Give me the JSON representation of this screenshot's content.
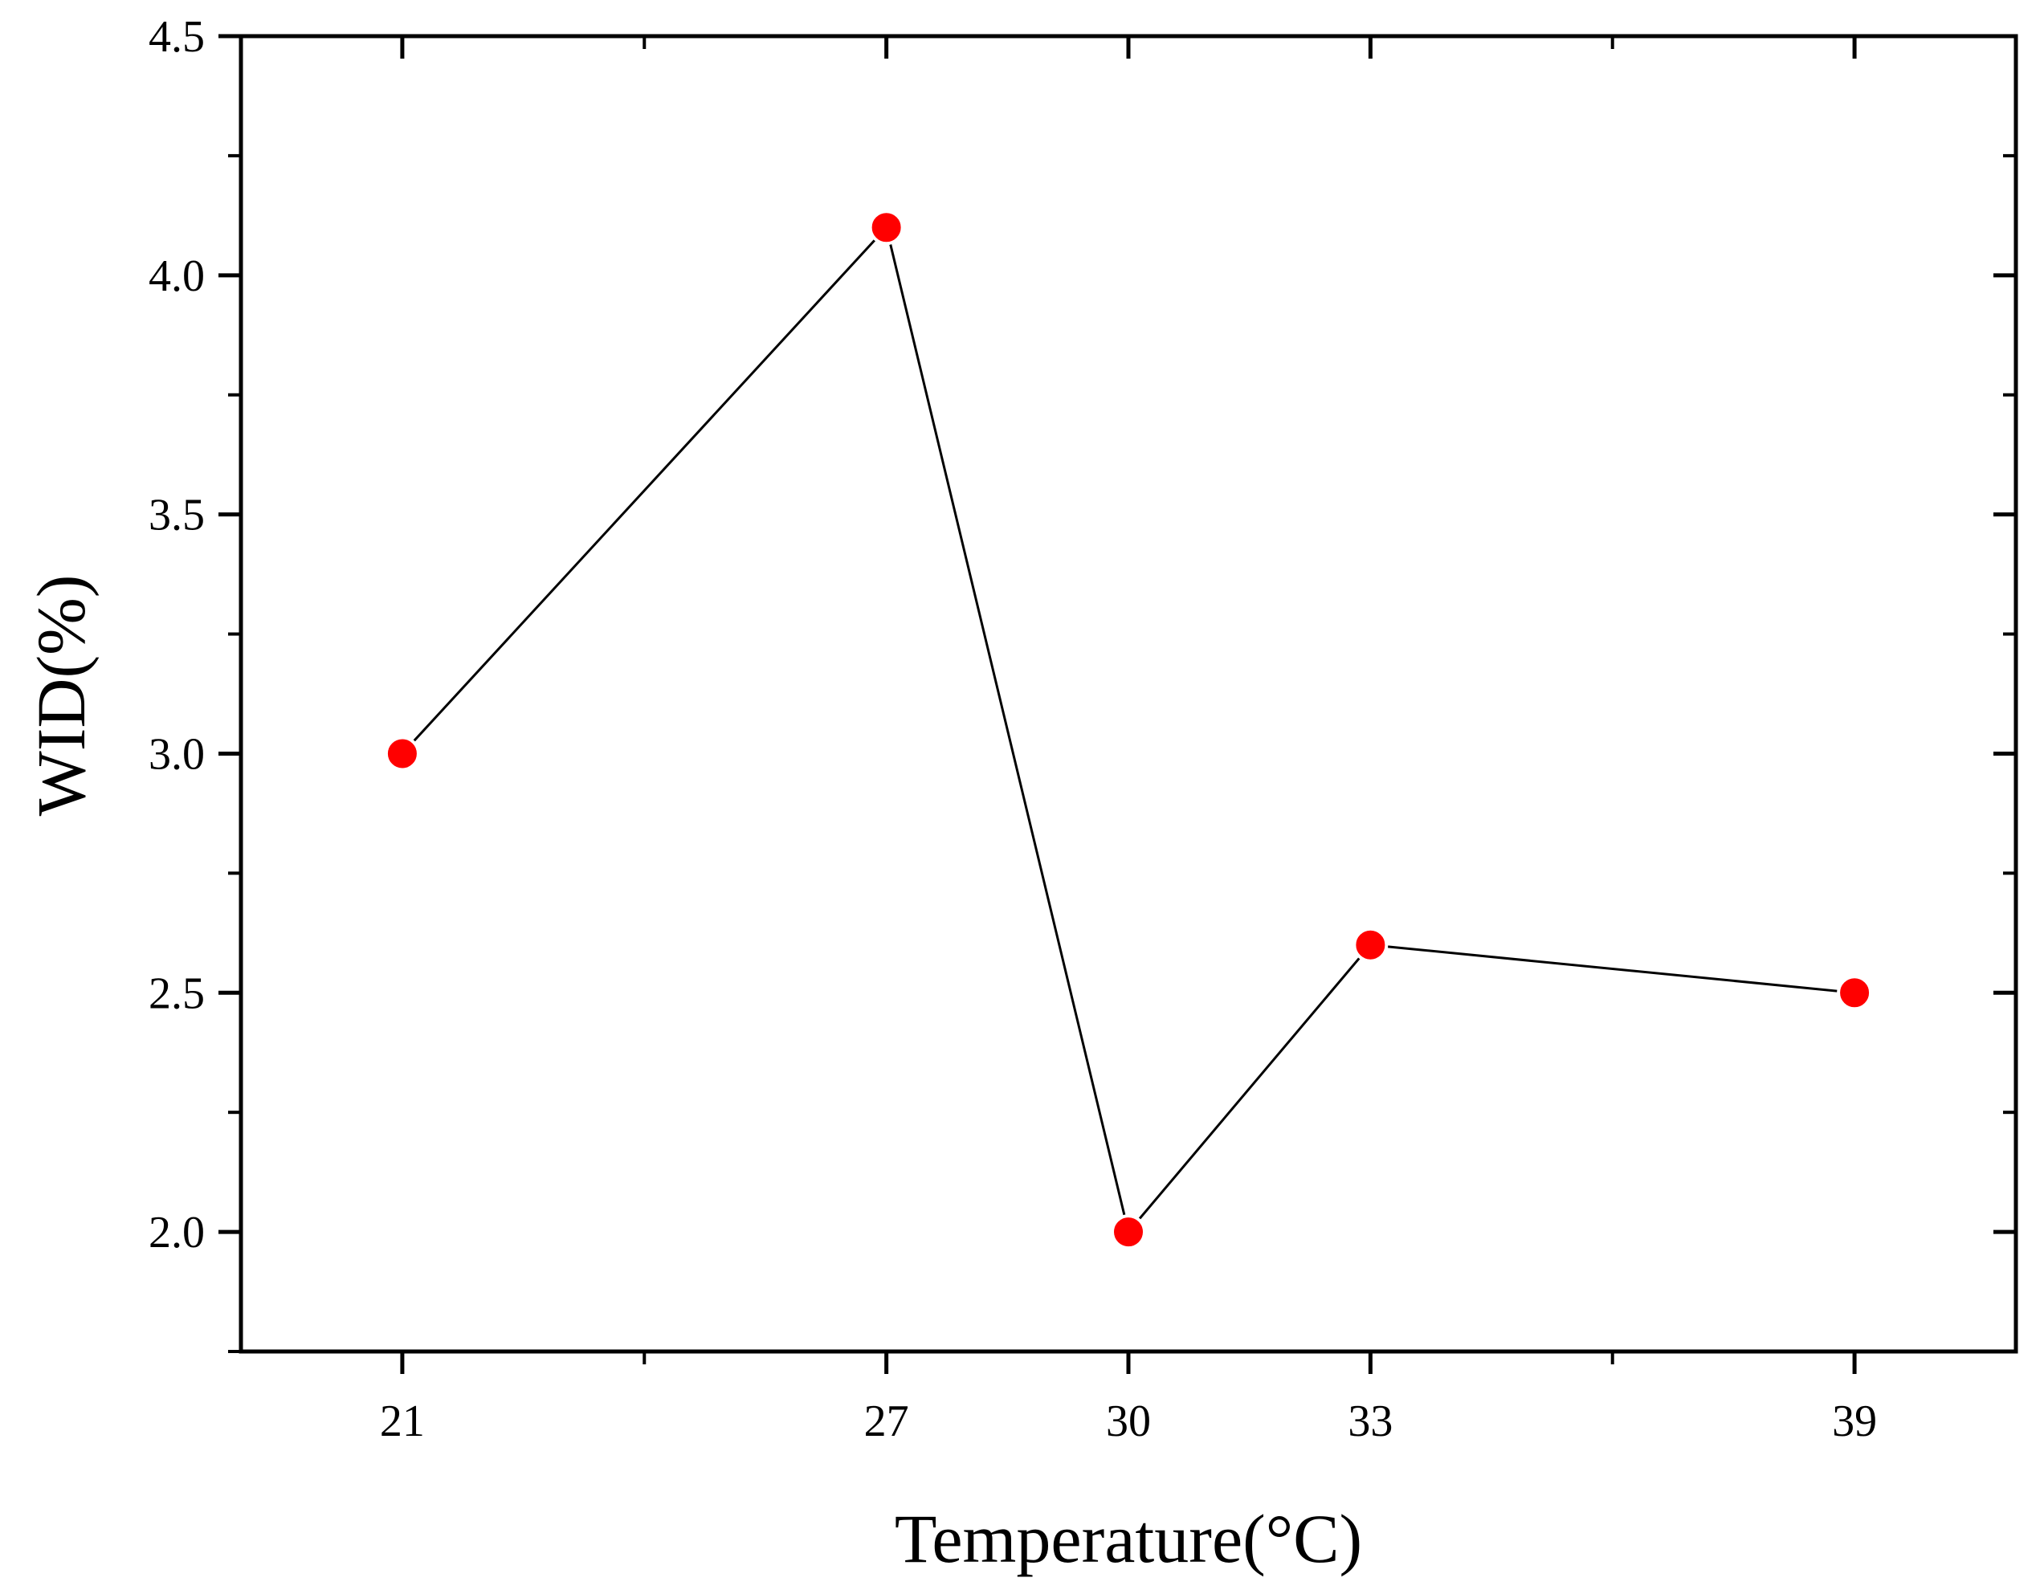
{
  "chart_data": {
    "type": "line",
    "xlabel": "Temperature(°C)",
    "ylabel": "WID(%)",
    "x": [
      21,
      27,
      30,
      33,
      39
    ],
    "x_tick_labels": [
      "21",
      "27",
      "30",
      "33",
      "39"
    ],
    "xlim": [
      19,
      41
    ],
    "ylim": [
      1.75,
      4.5
    ],
    "y_ticks": [
      2.0,
      2.5,
      3.0,
      3.5,
      4.0,
      4.5
    ],
    "y_tick_labels": [
      "2.0",
      "2.5",
      "3.0",
      "3.5",
      "4.0",
      "4.5"
    ],
    "series": [
      {
        "values": [
          3.0,
          4.1,
          2.0,
          2.6,
          2.5
        ],
        "marker_color": "#ff0000",
        "line_color": "#000000"
      }
    ],
    "grid": false,
    "legend": "none"
  }
}
